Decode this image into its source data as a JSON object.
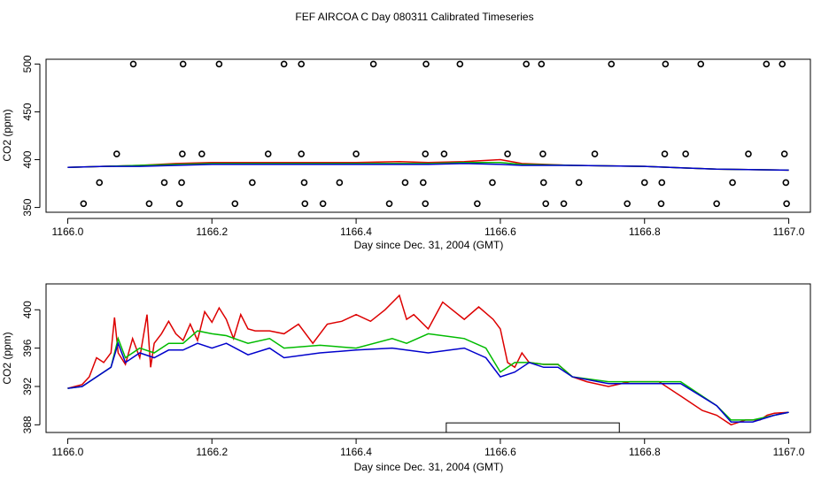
{
  "title": "FEF AIRCOA C  Day 080311  Calibrated Timeseries",
  "colors": {
    "red": "#dd0000",
    "green": "#00bb00",
    "blue": "#0000cc",
    "axis": "#000000"
  },
  "chart_data": [
    {
      "type": "scatter+line",
      "xlabel": "Day since Dec. 31, 2004 (GMT)",
      "ylabel": "CO2 (ppm)",
      "xlim": [
        1165.97,
        1167.03
      ],
      "ylim": [
        345,
        505
      ],
      "xticks": [
        1166.0,
        1166.2,
        1166.4,
        1166.6,
        1166.8,
        1167.0
      ],
      "xtick_labels": [
        "1166.0",
        "1166.2",
        "1166.4",
        "1166.6",
        "1166.8",
        "1167.0"
      ],
      "yticks": [
        350,
        400,
        450,
        500
      ],
      "ytick_labels": [
        "350",
        "400",
        "450",
        "500"
      ],
      "calibration_points": {
        "x": [
          1166.091,
          1166.16,
          1166.21,
          1166.3,
          1166.324,
          1166.424,
          1166.497,
          1166.544,
          1166.636,
          1166.657,
          1166.754,
          1166.829,
          1166.878,
          1166.969,
          1166.991,
          1166.068,
          1166.159,
          1166.186,
          1166.278,
          1166.324,
          1166.4,
          1166.496,
          1166.522,
          1166.61,
          1166.659,
          1166.731,
          1166.828,
          1166.857,
          1166.944,
          1166.994,
          1166.044,
          1166.134,
          1166.158,
          1166.256,
          1166.328,
          1166.377,
          1166.468,
          1166.493,
          1166.589,
          1166.66,
          1166.709,
          1166.8,
          1166.824,
          1166.922,
          1166.996,
          1166.022,
          1166.113,
          1166.155,
          1166.232,
          1166.329,
          1166.354,
          1166.446,
          1166.496,
          1166.568,
          1166.663,
          1166.688,
          1166.776,
          1166.823,
          1166.9,
          1166.997
        ],
        "y": [
          500,
          500,
          500,
          500,
          500,
          500,
          500,
          500,
          500,
          500,
          500,
          500,
          500,
          500,
          500,
          406,
          406,
          406,
          406,
          406,
          406,
          406,
          406,
          406,
          406,
          406,
          406,
          406,
          406,
          406,
          376,
          376,
          376,
          376,
          376,
          376,
          376,
          376,
          376,
          376,
          376,
          376,
          376,
          376,
          376,
          354,
          354,
          354,
          354,
          354,
          354,
          354,
          354,
          354,
          354,
          354,
          354,
          354,
          354,
          354
        ]
      },
      "series": [
        {
          "name": "red",
          "color": "#dd0000",
          "x": [
            1166.0,
            1166.05,
            1166.1,
            1166.15,
            1166.2,
            1166.3,
            1166.4,
            1166.46,
            1166.5,
            1166.55,
            1166.6,
            1166.63,
            1166.7,
            1166.8,
            1166.9,
            1167.0
          ],
          "y": [
            392,
            393,
            394,
            396,
            397,
            397,
            397,
            398,
            397,
            398,
            400,
            396,
            394,
            393,
            390,
            389
          ]
        },
        {
          "name": "green",
          "color": "#00bb00",
          "x": [
            1166.0,
            1166.05,
            1166.1,
            1166.15,
            1166.2,
            1166.3,
            1166.4,
            1166.5,
            1166.55,
            1166.6,
            1166.63,
            1166.7,
            1166.8,
            1166.9,
            1167.0
          ],
          "y": [
            392,
            393,
            394,
            395,
            396,
            396,
            396,
            396,
            397,
            397,
            395,
            394,
            393,
            390,
            389
          ]
        },
        {
          "name": "blue",
          "color": "#0000cc",
          "x": [
            1166.0,
            1166.05,
            1166.1,
            1166.15,
            1166.2,
            1166.3,
            1166.4,
            1166.5,
            1166.55,
            1166.6,
            1166.63,
            1166.7,
            1166.8,
            1166.9,
            1167.0
          ],
          "y": [
            392,
            393,
            393,
            394,
            395,
            395,
            395,
            395,
            396,
            395,
            394,
            394,
            393,
            390,
            389
          ]
        }
      ]
    },
    {
      "type": "line",
      "xlabel": "Day since Dec. 31, 2004 (GMT)",
      "ylabel": "CO2 (ppm)",
      "xlim": [
        1165.97,
        1167.03
      ],
      "ylim": [
        387.2,
        402.7
      ],
      "xticks": [
        1166.0,
        1166.2,
        1166.4,
        1166.6,
        1166.8,
        1167.0
      ],
      "xtick_labels": [
        "1166.0",
        "1166.2",
        "1166.4",
        "1166.6",
        "1166.8",
        "1167.0"
      ],
      "yticks": [
        388,
        392,
        396,
        400
      ],
      "ytick_labels": [
        "388",
        "392",
        "396",
        "400"
      ],
      "annotation_box": {
        "x_range": [
          1166.525,
          1166.765
        ],
        "y_range": [
          387.2,
          388.2
        ]
      },
      "series": [
        {
          "name": "red",
          "color": "#dd0000",
          "x": [
            1166.0,
            1166.02,
            1166.03,
            1166.04,
            1166.05,
            1166.06,
            1166.065,
            1166.07,
            1166.08,
            1166.09,
            1166.1,
            1166.11,
            1166.115,
            1166.12,
            1166.13,
            1166.14,
            1166.15,
            1166.16,
            1166.17,
            1166.18,
            1166.19,
            1166.2,
            1166.21,
            1166.22,
            1166.23,
            1166.24,
            1166.25,
            1166.26,
            1166.28,
            1166.3,
            1166.32,
            1166.34,
            1166.36,
            1166.38,
            1166.4,
            1166.42,
            1166.44,
            1166.46,
            1166.47,
            1166.48,
            1166.5,
            1166.52,
            1166.55,
            1166.57,
            1166.59,
            1166.6,
            1166.61,
            1166.62,
            1166.63,
            1166.64,
            1166.66,
            1166.68,
            1166.7,
            1166.72,
            1166.75,
            1166.78,
            1166.8,
            1166.82,
            1166.85,
            1166.88,
            1166.9,
            1166.92,
            1166.94,
            1166.96,
            1166.97,
            1166.98,
            1167.0
          ],
          "y": [
            391.8,
            392.2,
            393.0,
            395.0,
            394.5,
            395.5,
            399.2,
            395.5,
            394.3,
            397.0,
            395.0,
            399.5,
            394.0,
            396.5,
            397.5,
            398.8,
            397.5,
            396.8,
            398.5,
            396.8,
            399.8,
            398.7,
            400.2,
            399.0,
            397.0,
            399.5,
            398.0,
            397.8,
            397.8,
            397.5,
            398.5,
            396.5,
            398.5,
            398.8,
            399.5,
            398.8,
            400.0,
            401.5,
            399.0,
            399.5,
            398.0,
            400.8,
            399.0,
            400.3,
            399.0,
            398.0,
            394.5,
            394.0,
            395.5,
            394.5,
            394.3,
            394.3,
            393.0,
            392.5,
            392.0,
            392.5,
            392.5,
            392.5,
            391.0,
            389.5,
            389.0,
            388.0,
            388.5,
            388.5,
            389.0,
            389.2,
            389.3
          ]
        },
        {
          "name": "green",
          "color": "#00bb00",
          "x": [
            1166.0,
            1166.02,
            1166.04,
            1166.06,
            1166.07,
            1166.08,
            1166.1,
            1166.12,
            1166.14,
            1166.16,
            1166.18,
            1166.2,
            1166.22,
            1166.25,
            1166.28,
            1166.3,
            1166.35,
            1166.4,
            1166.45,
            1166.47,
            1166.5,
            1166.55,
            1166.58,
            1166.6,
            1166.62,
            1166.64,
            1166.66,
            1166.68,
            1166.7,
            1166.75,
            1166.8,
            1166.85,
            1166.9,
            1166.92,
            1166.95,
            1166.98,
            1167.0
          ],
          "y": [
            391.8,
            392.0,
            393.0,
            394.0,
            397.0,
            395.0,
            396.0,
            395.5,
            396.5,
            396.5,
            397.8,
            397.5,
            397.3,
            396.5,
            397.0,
            396.0,
            396.3,
            396.0,
            397.0,
            396.5,
            397.5,
            397.0,
            396.0,
            393.5,
            394.5,
            394.5,
            394.3,
            394.3,
            393.0,
            392.5,
            392.5,
            392.5,
            390.0,
            388.5,
            388.5,
            389.0,
            389.3
          ]
        },
        {
          "name": "blue",
          "color": "#0000cc",
          "x": [
            1166.0,
            1166.02,
            1166.04,
            1166.06,
            1166.07,
            1166.08,
            1166.1,
            1166.12,
            1166.14,
            1166.16,
            1166.18,
            1166.2,
            1166.22,
            1166.25,
            1166.28,
            1166.3,
            1166.35,
            1166.4,
            1166.45,
            1166.5,
            1166.55,
            1166.58,
            1166.6,
            1166.62,
            1166.64,
            1166.66,
            1166.68,
            1166.7,
            1166.75,
            1166.8,
            1166.85,
            1166.9,
            1166.92,
            1166.95,
            1166.98,
            1167.0
          ],
          "y": [
            391.8,
            392.0,
            393.0,
            394.0,
            396.5,
            394.5,
            395.5,
            395.0,
            395.8,
            395.8,
            396.5,
            396.0,
            396.5,
            395.3,
            396.0,
            395.0,
            395.5,
            395.8,
            396.0,
            395.5,
            396.0,
            395.0,
            393.0,
            393.5,
            394.5,
            394.0,
            394.0,
            393.0,
            392.3,
            392.3,
            392.3,
            390.0,
            388.3,
            388.3,
            389.0,
            389.3
          ]
        }
      ]
    }
  ]
}
